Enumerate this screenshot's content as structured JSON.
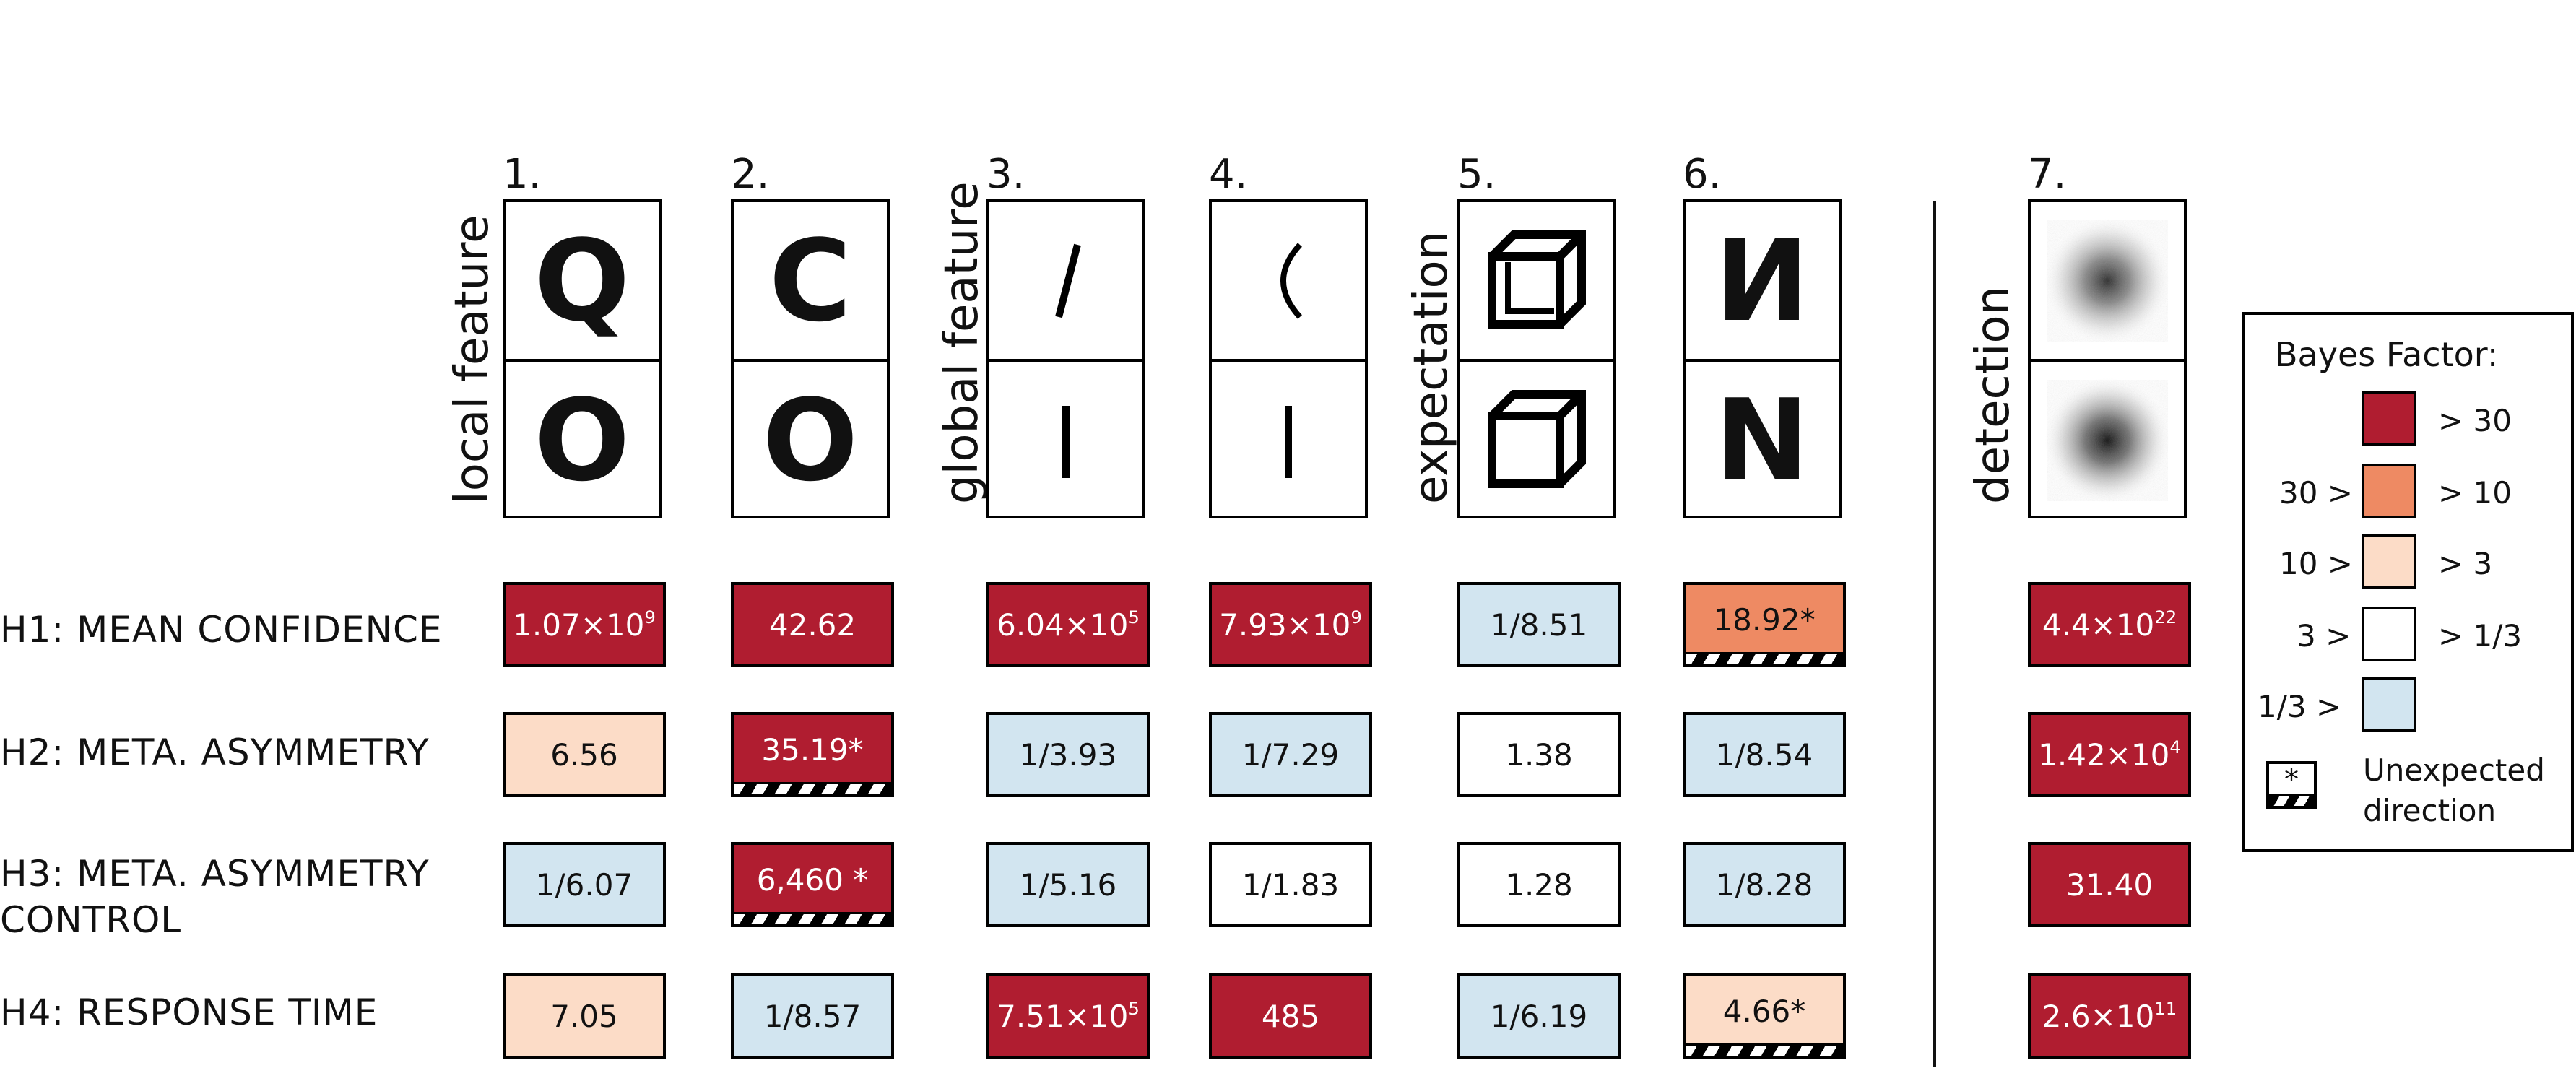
{
  "columns": [
    {
      "number": "1.",
      "top_glyph": "Q",
      "bottom_glyph": "O"
    },
    {
      "number": "2.",
      "top_glyph": "C",
      "bottom_glyph": "O"
    },
    {
      "number": "3.",
      "top_glyph": "slash-stroke",
      "bottom_glyph": "vertical-stroke"
    },
    {
      "number": "4.",
      "top_glyph": "curve-stroke",
      "bottom_glyph": "vertical-stroke"
    },
    {
      "number": "5.",
      "top_glyph": "cube-impossible",
      "bottom_glyph": "cube"
    },
    {
      "number": "6.",
      "top_glyph": "И",
      "bottom_glyph": "N"
    },
    {
      "number": "7.",
      "top_glyph": "noise-blob",
      "bottom_glyph": "noise-blob"
    }
  ],
  "group_labels": {
    "local": "local feature",
    "global": "global feature",
    "expectation": "expectation",
    "detection": "detection"
  },
  "rows": [
    {
      "label": "H1: MEAN CONFIDENCE",
      "cells": [
        {
          "base": "1.07×10",
          "exp": "9",
          "star": "",
          "scale": "s30",
          "hatch": false
        },
        {
          "base": "42.62",
          "exp": "",
          "star": "",
          "scale": "s30",
          "hatch": false
        },
        {
          "base": "6.04×10",
          "exp": "5",
          "star": "",
          "scale": "s30",
          "hatch": false
        },
        {
          "base": "7.93×10",
          "exp": "9",
          "star": "",
          "scale": "s30",
          "hatch": false
        },
        {
          "base": "1/8.51",
          "exp": "",
          "star": "",
          "scale": "sl",
          "hatch": false
        },
        {
          "base": "18.92",
          "exp": "",
          "star": "*",
          "scale": "s10",
          "hatch": true
        },
        {
          "base": "4.4×10",
          "exp": "22",
          "star": "",
          "scale": "s30",
          "hatch": false
        }
      ]
    },
    {
      "label": "H2: META. ASYMMETRY",
      "cells": [
        {
          "base": "6.56",
          "exp": "",
          "star": "",
          "scale": "s3",
          "hatch": false
        },
        {
          "base": "35.19",
          "exp": "",
          "star": "*",
          "scale": "s30",
          "hatch": true
        },
        {
          "base": "1/3.93",
          "exp": "",
          "star": "",
          "scale": "sl",
          "hatch": false
        },
        {
          "base": "1/7.29",
          "exp": "",
          "star": "",
          "scale": "sl",
          "hatch": false
        },
        {
          "base": "1.38",
          "exp": "",
          "star": "",
          "scale": "sn",
          "hatch": false
        },
        {
          "base": "1/8.54",
          "exp": "",
          "star": "",
          "scale": "sl",
          "hatch": false
        },
        {
          "base": "1.42×10",
          "exp": "4",
          "star": "",
          "scale": "s30",
          "hatch": false
        }
      ]
    },
    {
      "label": "H3: META. ASYMMETRY",
      "label2": "CONTROL",
      "cells": [
        {
          "base": "1/6.07",
          "exp": "",
          "star": "",
          "scale": "sl",
          "hatch": false
        },
        {
          "base": "6,460 ",
          "exp": "",
          "star": "*",
          "scale": "s30",
          "hatch": true
        },
        {
          "base": "1/5.16",
          "exp": "",
          "star": "",
          "scale": "sl",
          "hatch": false
        },
        {
          "base": "1/1.83",
          "exp": "",
          "star": "",
          "scale": "sn",
          "hatch": false
        },
        {
          "base": "1.28",
          "exp": "",
          "star": "",
          "scale": "sn",
          "hatch": false
        },
        {
          "base": "1/8.28",
          "exp": "",
          "star": "",
          "scale": "sl",
          "hatch": false
        },
        {
          "base": "31.40",
          "exp": "",
          "star": "",
          "scale": "s30",
          "hatch": false
        }
      ]
    },
    {
      "label": "H4: RESPONSE TIME",
      "cells": [
        {
          "base": "7.05",
          "exp": "",
          "star": "",
          "scale": "s3",
          "hatch": false
        },
        {
          "base": "1/8.57",
          "exp": "",
          "star": "",
          "scale": "sl",
          "hatch": false
        },
        {
          "base": "7.51×10",
          "exp": "5",
          "star": "",
          "scale": "s30",
          "hatch": false
        },
        {
          "base": "485",
          "exp": "",
          "star": "",
          "scale": "s30",
          "hatch": false
        },
        {
          "base": "1/6.19",
          "exp": "",
          "star": "",
          "scale": "sl",
          "hatch": false
        },
        {
          "base": "4.66",
          "exp": "",
          "star": "*",
          "scale": "s3",
          "hatch": true
        },
        {
          "base": "2.6×10",
          "exp": "11",
          "star": "",
          "scale": "s30",
          "hatch": false
        }
      ]
    }
  ],
  "legend": {
    "title": "Bayes Factor:",
    "items": [
      {
        "left": "",
        "right": "> 30",
        "color": "#b01d30"
      },
      {
        "left": "30 >",
        "right": "> 10",
        "color": "#ee8a63"
      },
      {
        "left": "10 >",
        "right": "> 3",
        "color": "#fcdcc7"
      },
      {
        "left": "3 >",
        "right": "> 1/3",
        "color": "#ffffff"
      },
      {
        "left": "1/3 >",
        "right": "",
        "color": "#d2e5f0"
      }
    ],
    "unexpected_symbol": "*",
    "unexpected_line1": "Unexpected",
    "unexpected_line2": "direction"
  }
}
